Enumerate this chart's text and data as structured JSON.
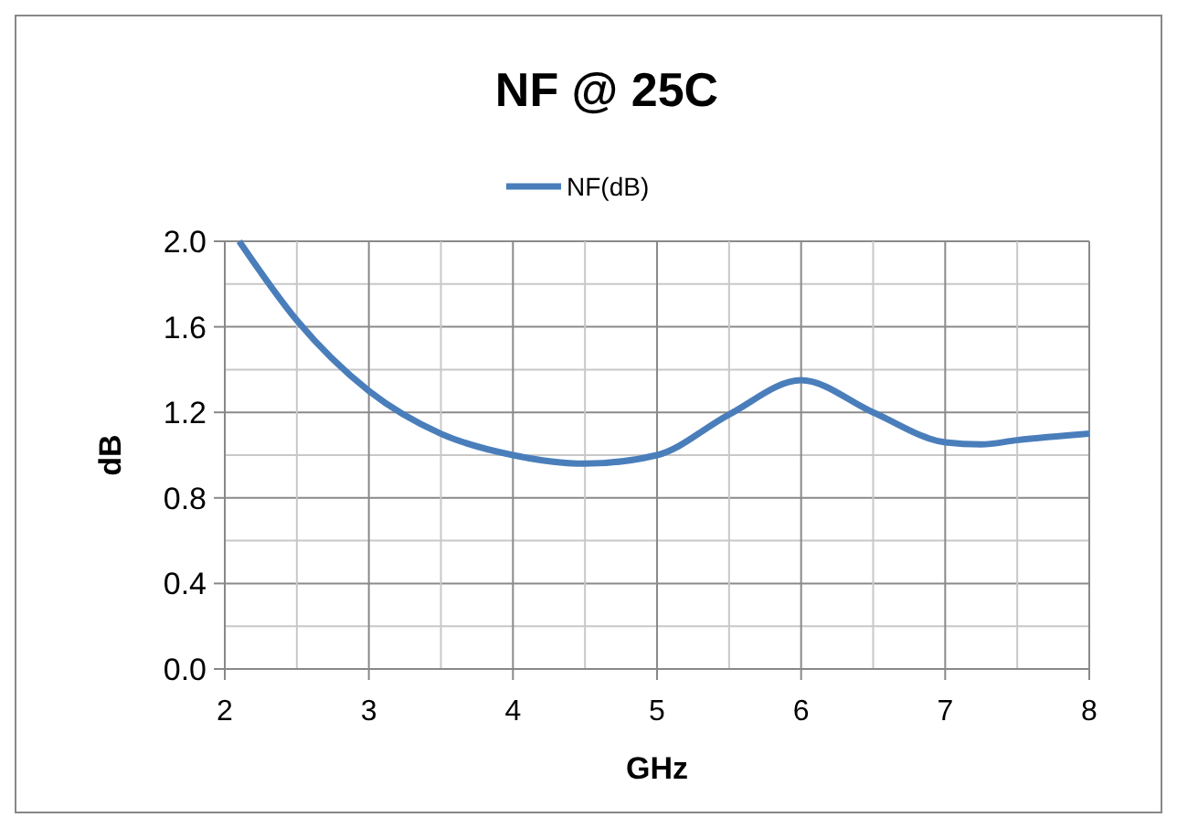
{
  "chart_data": {
    "type": "line",
    "title": "NF @ 25C",
    "xlabel": "GHz",
    "ylabel": "dB",
    "x": [
      2.1,
      2.5,
      3,
      3.5,
      4,
      4.5,
      5,
      5.5,
      6,
      6.5,
      7,
      7.25,
      7.5,
      8
    ],
    "series": [
      {
        "name": "NF(dB)",
        "color": "#4a7ebb",
        "values": [
          2.0,
          1.63,
          1.3,
          1.1,
          1.0,
          0.96,
          1.0,
          1.19,
          1.35,
          1.2,
          1.06,
          1.05,
          1.07,
          1.1
        ]
      }
    ],
    "xlim": [
      2,
      8
    ],
    "xticks": [
      2,
      {
        "value": 2.5,
        "label": null
      },
      3,
      {
        "value": 3.5,
        "label": null
      },
      4,
      {
        "value": 4.5,
        "label": null
      },
      5,
      {
        "value": 5.5,
        "label": null
      },
      6,
      {
        "value": 6.5,
        "label": null
      },
      7,
      {
        "value": 7.5,
        "label": null
      },
      8
    ],
    "ylim": [
      0,
      2
    ],
    "yticks": [
      {
        "value": 0,
        "label": "0.0"
      },
      {
        "value": 0.2,
        "label": null
      },
      {
        "value": 0.4,
        "label": "0.4"
      },
      {
        "value": 0.6,
        "label": null
      },
      {
        "value": 0.8,
        "label": "0.8"
      },
      {
        "value": 1.0,
        "label": null
      },
      {
        "value": 1.2,
        "label": "1.2"
      },
      {
        "value": 1.4,
        "label": null
      },
      {
        "value": 1.6,
        "label": "1.6"
      },
      {
        "value": 1.8,
        "label": null
      },
      {
        "value": 2,
        "label": "2.0"
      }
    ],
    "grid": true,
    "legend": "top",
    "marker": "none",
    "line_style": "solid"
  }
}
